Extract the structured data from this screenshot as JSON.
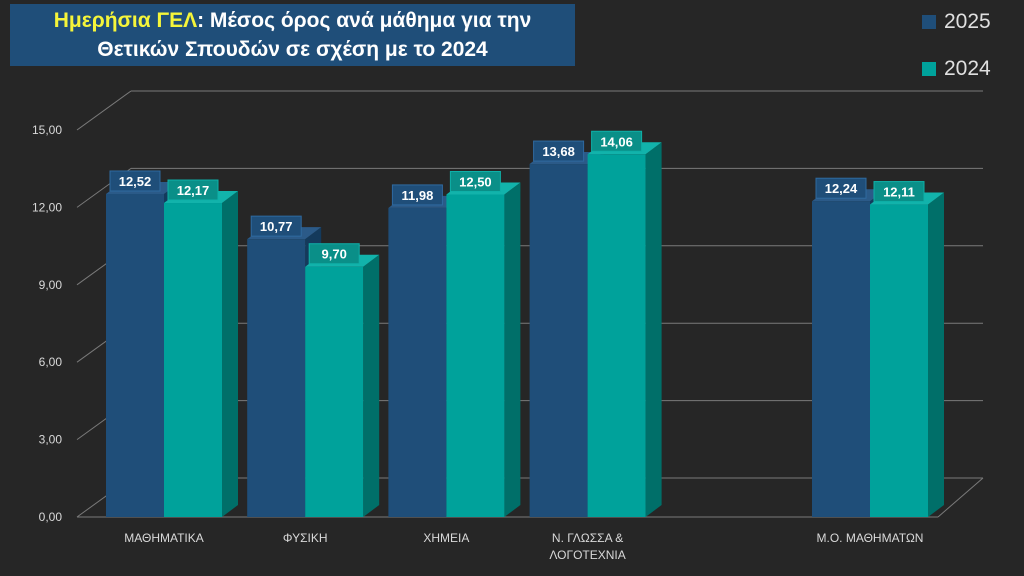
{
  "title": {
    "highlight": "Ημερήσια ΓΕΛ",
    "rest": ": Μέσος όρος ανά μάθημα για την",
    "line2": "Θετικών Σπουδών σε σχέση με το 2024"
  },
  "colors": {
    "s2025": "#1f4e79",
    "s2025_top": "#2b5a88",
    "s2025_side": "#143a5c",
    "s2024": "#00a29b",
    "s2024_top": "#12b3ab",
    "s2024_side": "#006f69",
    "label2025": "#1f4e79",
    "label2024": "#0a8f88",
    "highlight": "#f5f53a"
  },
  "chart_data": {
    "type": "bar",
    "categories": [
      [
        "ΜΑΘΗΜΑΤΙΚΑ"
      ],
      [
        "ΦΥΣΙΚΗ"
      ],
      [
        "ΧΗΜΕΙΑ"
      ],
      [
        "Ν. ΓΛΩΣΣΑ &",
        "ΛΟΓΟΤΕΧΝΙΑ"
      ],
      [],
      [
        "Μ.Ο. ΜΑΘΗΜΑΤΩΝ"
      ]
    ],
    "series": [
      {
        "name": "2025",
        "values": [
          12.52,
          10.77,
          11.98,
          13.68,
          null,
          12.24
        ],
        "labels": [
          "12,52",
          "10,77",
          "11,98",
          "13,68",
          "",
          "12,24"
        ]
      },
      {
        "name": "2024",
        "values": [
          12.17,
          9.7,
          12.5,
          14.06,
          null,
          12.11
        ],
        "labels": [
          "12,17",
          "9,70",
          "12,50",
          "14,06",
          "",
          "12,11"
        ]
      }
    ],
    "yticks": [
      "0,00",
      "3,00",
      "6,00",
      "9,00",
      "12,00",
      "15,00"
    ],
    "ylim": [
      0,
      15
    ],
    "grid": true,
    "legend_position": "top-right"
  }
}
